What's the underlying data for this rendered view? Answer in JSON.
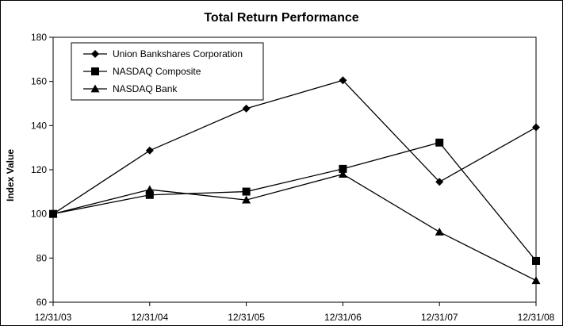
{
  "chart_data": {
    "type": "line",
    "title": "Total Return Performance",
    "xlabel": "",
    "ylabel": "Index Value",
    "categories": [
      "12/31/03",
      "12/31/04",
      "12/31/05",
      "12/31/06",
      "12/31/07",
      "12/31/08"
    ],
    "ylim": [
      60,
      180
    ],
    "yticks": [
      60,
      80,
      100,
      120,
      140,
      160,
      180
    ],
    "grid": false,
    "legend_position": "top-left",
    "series": [
      {
        "name": "Union Bankshares Corporation",
        "marker": "diamond",
        "values": [
          100,
          128.7,
          147.7,
          160.5,
          114.5,
          139.2
        ]
      },
      {
        "name": "NASDAQ Composite",
        "marker": "square",
        "values": [
          100,
          108.6,
          110.1,
          120.4,
          132.3,
          78.7
        ]
      },
      {
        "name": "NASDAQ Bank",
        "marker": "triangle",
        "values": [
          100,
          111.0,
          106.3,
          118.0,
          91.8,
          69.8
        ]
      }
    ],
    "line_color": "#000000"
  }
}
